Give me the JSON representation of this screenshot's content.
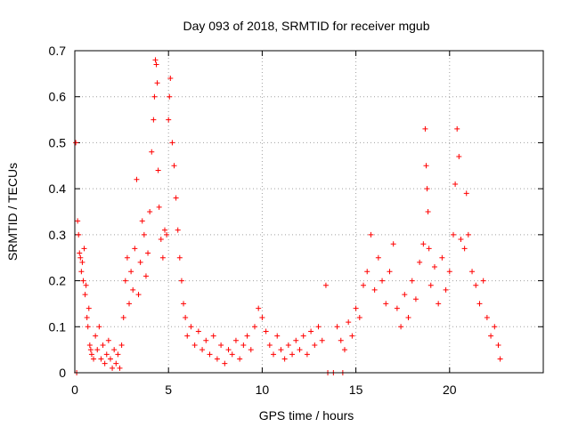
{
  "chart_data": {
    "type": "scatter",
    "title": "Day 093 of 2018, SRMTID for receiver mgub",
    "xlabel": "GPS time / hours",
    "ylabel": "SRMTID / TECUs",
    "xlim": [
      0,
      25
    ],
    "ylim": [
      0,
      0.7
    ],
    "xticks": [
      0,
      5,
      10,
      15,
      20
    ],
    "yticks": [
      0,
      0.1,
      0.2,
      0.3,
      0.4,
      0.5,
      0.6,
      0.7
    ],
    "grid": true,
    "marker": "plus",
    "series": [
      {
        "name": "SRMTID",
        "color": "#ff0000",
        "points": [
          [
            0.05,
            0.5
          ],
          [
            0.1,
            0.0
          ],
          [
            0.15,
            0.33
          ],
          [
            0.2,
            0.3
          ],
          [
            0.25,
            0.26
          ],
          [
            0.3,
            0.25
          ],
          [
            0.35,
            0.22
          ],
          [
            0.4,
            0.24
          ],
          [
            0.45,
            0.2
          ],
          [
            0.5,
            0.27
          ],
          [
            0.55,
            0.17
          ],
          [
            0.6,
            0.19
          ],
          [
            0.65,
            0.12
          ],
          [
            0.7,
            0.1
          ],
          [
            0.75,
            0.14
          ],
          [
            0.8,
            0.06
          ],
          [
            0.85,
            0.05
          ],
          [
            0.9,
            0.04
          ],
          [
            1.0,
            0.03
          ],
          [
            1.1,
            0.08
          ],
          [
            1.2,
            0.05
          ],
          [
            1.3,
            0.1
          ],
          [
            1.4,
            0.03
          ],
          [
            1.5,
            0.06
          ],
          [
            1.6,
            0.02
          ],
          [
            1.7,
            0.04
          ],
          [
            1.8,
            0.07
          ],
          [
            1.9,
            0.03
          ],
          [
            2.0,
            0.01
          ],
          [
            2.1,
            0.05
          ],
          [
            2.2,
            0.02
          ],
          [
            2.3,
            0.04
          ],
          [
            2.4,
            0.01
          ],
          [
            2.5,
            0.06
          ],
          [
            2.6,
            0.12
          ],
          [
            2.7,
            0.2
          ],
          [
            2.8,
            0.25
          ],
          [
            2.9,
            0.15
          ],
          [
            3.0,
            0.22
          ],
          [
            3.1,
            0.18
          ],
          [
            3.2,
            0.27
          ],
          [
            3.3,
            0.42
          ],
          [
            3.4,
            0.17
          ],
          [
            3.5,
            0.24
          ],
          [
            3.6,
            0.33
          ],
          [
            3.7,
            0.3
          ],
          [
            3.8,
            0.21
          ],
          [
            3.9,
            0.26
          ],
          [
            4.0,
            0.35
          ],
          [
            4.1,
            0.48
          ],
          [
            4.2,
            0.55
          ],
          [
            4.25,
            0.6
          ],
          [
            4.3,
            0.68
          ],
          [
            4.35,
            0.67
          ],
          [
            4.4,
            0.63
          ],
          [
            4.45,
            0.44
          ],
          [
            4.5,
            0.36
          ],
          [
            4.6,
            0.29
          ],
          [
            4.7,
            0.25
          ],
          [
            4.8,
            0.31
          ],
          [
            4.9,
            0.3
          ],
          [
            5.0,
            0.55
          ],
          [
            5.05,
            0.6
          ],
          [
            5.1,
            0.64
          ],
          [
            5.2,
            0.5
          ],
          [
            5.3,
            0.45
          ],
          [
            5.4,
            0.38
          ],
          [
            5.5,
            0.31
          ],
          [
            5.6,
            0.25
          ],
          [
            5.7,
            0.2
          ],
          [
            5.8,
            0.15
          ],
          [
            5.9,
            0.12
          ],
          [
            6.0,
            0.08
          ],
          [
            6.2,
            0.1
          ],
          [
            6.4,
            0.06
          ],
          [
            6.6,
            0.09
          ],
          [
            6.8,
            0.05
          ],
          [
            7.0,
            0.07
          ],
          [
            7.2,
            0.04
          ],
          [
            7.4,
            0.08
          ],
          [
            7.6,
            0.03
          ],
          [
            7.8,
            0.06
          ],
          [
            8.0,
            0.02
          ],
          [
            8.2,
            0.05
          ],
          [
            8.4,
            0.04
          ],
          [
            8.6,
            0.07
          ],
          [
            8.8,
            0.03
          ],
          [
            9.0,
            0.06
          ],
          [
            9.2,
            0.08
          ],
          [
            9.4,
            0.05
          ],
          [
            9.6,
            0.1
          ],
          [
            9.8,
            0.14
          ],
          [
            10.0,
            0.12
          ],
          [
            10.2,
            0.09
          ],
          [
            10.4,
            0.06
          ],
          [
            10.6,
            0.04
          ],
          [
            10.8,
            0.08
          ],
          [
            11.0,
            0.05
          ],
          [
            11.2,
            0.03
          ],
          [
            11.4,
            0.06
          ],
          [
            11.6,
            0.04
          ],
          [
            11.8,
            0.07
          ],
          [
            12.0,
            0.05
          ],
          [
            12.2,
            0.08
          ],
          [
            12.4,
            0.04
          ],
          [
            12.6,
            0.09
          ],
          [
            12.8,
            0.06
          ],
          [
            13.0,
            0.1
          ],
          [
            13.2,
            0.07
          ],
          [
            13.4,
            0.19
          ],
          [
            13.5,
            0.0
          ],
          [
            13.8,
            0.0
          ],
          [
            14.3,
            0.0
          ],
          [
            14.0,
            0.1
          ],
          [
            14.2,
            0.07
          ],
          [
            14.4,
            0.05
          ],
          [
            14.6,
            0.11
          ],
          [
            14.8,
            0.08
          ],
          [
            15.0,
            0.14
          ],
          [
            15.2,
            0.12
          ],
          [
            15.4,
            0.19
          ],
          [
            15.6,
            0.22
          ],
          [
            15.8,
            0.3
          ],
          [
            16.0,
            0.18
          ],
          [
            16.2,
            0.25
          ],
          [
            16.4,
            0.2
          ],
          [
            16.6,
            0.15
          ],
          [
            16.8,
            0.22
          ],
          [
            17.0,
            0.28
          ],
          [
            17.2,
            0.14
          ],
          [
            17.4,
            0.1
          ],
          [
            17.6,
            0.17
          ],
          [
            17.8,
            0.12
          ],
          [
            18.0,
            0.2
          ],
          [
            18.2,
            0.16
          ],
          [
            18.4,
            0.24
          ],
          [
            18.6,
            0.28
          ],
          [
            18.7,
            0.53
          ],
          [
            18.75,
            0.45
          ],
          [
            18.8,
            0.4
          ],
          [
            18.85,
            0.35
          ],
          [
            18.9,
            0.27
          ],
          [
            19.0,
            0.19
          ],
          [
            19.2,
            0.23
          ],
          [
            19.4,
            0.15
          ],
          [
            19.6,
            0.25
          ],
          [
            19.8,
            0.18
          ],
          [
            20.0,
            0.22
          ],
          [
            20.2,
            0.3
          ],
          [
            20.3,
            0.41
          ],
          [
            20.4,
            0.53
          ],
          [
            20.5,
            0.47
          ],
          [
            20.6,
            0.29
          ],
          [
            20.8,
            0.27
          ],
          [
            20.9,
            0.39
          ],
          [
            21.0,
            0.3
          ],
          [
            21.2,
            0.22
          ],
          [
            21.4,
            0.19
          ],
          [
            21.6,
            0.15
          ],
          [
            21.8,
            0.2
          ],
          [
            22.0,
            0.12
          ],
          [
            22.2,
            0.08
          ],
          [
            22.4,
            0.1
          ],
          [
            22.6,
            0.06
          ],
          [
            22.7,
            0.03
          ]
        ]
      }
    ]
  }
}
